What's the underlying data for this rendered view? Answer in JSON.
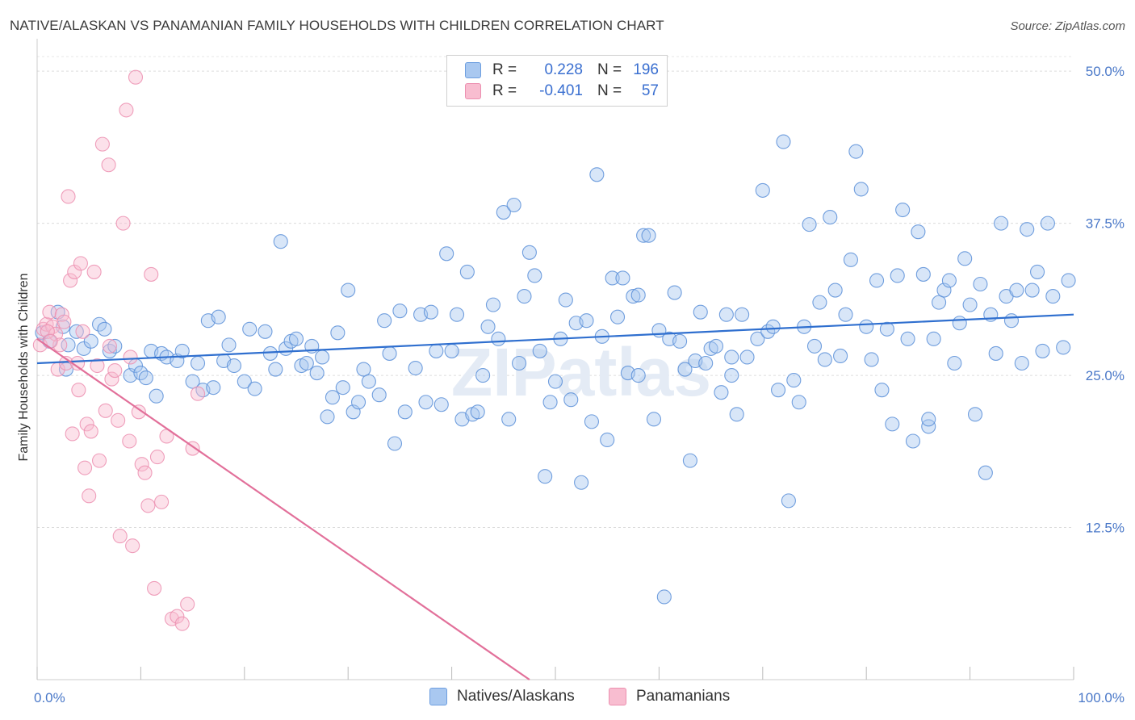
{
  "title": "NATIVE/ALASKAN VS PANAMANIAN FAMILY HOUSEHOLDS WITH CHILDREN CORRELATION CHART",
  "source": "Source: ZipAtlas.com",
  "watermark": "ZIPatlas",
  "legend_top": [
    {
      "r_label": "R =",
      "r_value": "0.228",
      "n_label": "N =",
      "n_value": "196",
      "color": "#a9c8f0",
      "border": "#6e9fe0"
    },
    {
      "r_label": "R =",
      "r_value": "-0.401",
      "n_label": "N =",
      "n_value": "57",
      "color": "#f8bdd0",
      "border": "#ec8fb0"
    }
  ],
  "legend_bottom": [
    {
      "label": "Natives/Alaskans",
      "color": "#a9c8f0",
      "border": "#6e9fe0"
    },
    {
      "label": "Panamanians",
      "color": "#f8bdd0",
      "border": "#ec8fb0"
    }
  ],
  "chart_data": {
    "type": "scatter",
    "ylabel": "Family Households with Children",
    "xlim": [
      0,
      100
    ],
    "ylim": [
      0,
      52
    ],
    "x_tick_labels": [
      "0.0%",
      "100.0%"
    ],
    "y_ticks": [
      12.5,
      25.0,
      37.5,
      50.0
    ],
    "y_tick_labels": [
      "12.5%",
      "25.0%",
      "37.5%",
      "50.0%"
    ],
    "grid": true,
    "series": [
      {
        "name": "Natives/Alaskans",
        "color": "#5b8fd8",
        "fill": "#a9c8f0",
        "trend": {
          "x": [
            0,
            100
          ],
          "y": [
            26.0,
            30.0
          ],
          "color": "#2f6fcf"
        },
        "points": [
          [
            0.5,
            28.5
          ],
          [
            1.2,
            27.8
          ],
          [
            2.0,
            30.2
          ],
          [
            2.5,
            29.0
          ],
          [
            3.0,
            27.5
          ],
          [
            3.8,
            28.6
          ],
          [
            4.5,
            27.2
          ],
          [
            5.2,
            27.8
          ],
          [
            6.0,
            29.2
          ],
          [
            6.5,
            28.8
          ],
          [
            7.0,
            27.0
          ],
          [
            7.5,
            27.4
          ],
          [
            9.0,
            25.0
          ],
          [
            9.5,
            25.8
          ],
          [
            10.0,
            25.2
          ],
          [
            10.5,
            24.8
          ],
          [
            11.0,
            27.0
          ],
          [
            11.5,
            23.3
          ],
          [
            12.0,
            26.8
          ],
          [
            12.5,
            26.5
          ],
          [
            13.5,
            26.2
          ],
          [
            14.0,
            27.0
          ],
          [
            15.0,
            24.5
          ],
          [
            15.5,
            26.0
          ],
          [
            16.0,
            23.8
          ],
          [
            16.5,
            29.5
          ],
          [
            17.0,
            24.0
          ],
          [
            17.5,
            29.8
          ],
          [
            18.0,
            26.2
          ],
          [
            18.5,
            27.5
          ],
          [
            19.0,
            25.8
          ],
          [
            20.0,
            24.5
          ],
          [
            20.5,
            28.8
          ],
          [
            21.0,
            23.9
          ],
          [
            22.0,
            28.6
          ],
          [
            22.5,
            26.8
          ],
          [
            23.0,
            25.5
          ],
          [
            23.5,
            36.0
          ],
          [
            24.0,
            27.2
          ],
          [
            24.5,
            27.8
          ],
          [
            25.0,
            28.0
          ],
          [
            25.5,
            25.8
          ],
          [
            26.5,
            27.4
          ],
          [
            27.0,
            25.2
          ],
          [
            27.5,
            26.5
          ],
          [
            28.0,
            21.6
          ],
          [
            28.5,
            23.2
          ],
          [
            29.0,
            28.5
          ],
          [
            29.5,
            24.0
          ],
          [
            30.0,
            32.0
          ],
          [
            30.5,
            22.0
          ],
          [
            31.0,
            22.8
          ],
          [
            31.5,
            25.5
          ],
          [
            32.0,
            24.5
          ],
          [
            33.0,
            23.4
          ],
          [
            33.5,
            29.5
          ],
          [
            34.0,
            26.8
          ],
          [
            34.5,
            19.4
          ],
          [
            35.0,
            30.3
          ],
          [
            35.5,
            22.0
          ],
          [
            36.5,
            25.6
          ],
          [
            37.0,
            30.0
          ],
          [
            37.5,
            22.8
          ],
          [
            38.0,
            30.2
          ],
          [
            38.5,
            27.0
          ],
          [
            39.0,
            22.6
          ],
          [
            39.5,
            35.0
          ],
          [
            40.0,
            27.0
          ],
          [
            40.5,
            30.0
          ],
          [
            41.0,
            21.4
          ],
          [
            41.5,
            33.5
          ],
          [
            42.0,
            21.8
          ],
          [
            42.5,
            22.0
          ],
          [
            43.0,
            25.0
          ],
          [
            43.5,
            29.0
          ],
          [
            44.0,
            30.8
          ],
          [
            45.0,
            38.4
          ],
          [
            45.5,
            21.4
          ],
          [
            46.0,
            39.0
          ],
          [
            46.5,
            26.0
          ],
          [
            47.0,
            31.5
          ],
          [
            47.5,
            35.1
          ],
          [
            48.0,
            33.2
          ],
          [
            48.5,
            27.0
          ],
          [
            49.0,
            16.7
          ],
          [
            49.5,
            22.8
          ],
          [
            50.0,
            24.5
          ],
          [
            50.5,
            28.0
          ],
          [
            51.0,
            31.2
          ],
          [
            51.5,
            23.0
          ],
          [
            52.0,
            29.3
          ],
          [
            52.5,
            16.2
          ],
          [
            53.0,
            29.5
          ],
          [
            53.5,
            21.2
          ],
          [
            54.0,
            41.5
          ],
          [
            54.5,
            28.2
          ],
          [
            55.0,
            19.7
          ],
          [
            55.5,
            33.0
          ],
          [
            56.0,
            29.8
          ],
          [
            56.5,
            33.0
          ],
          [
            57.0,
            25.2
          ],
          [
            57.5,
            31.5
          ],
          [
            58.0,
            31.6
          ],
          [
            58.5,
            36.5
          ],
          [
            59.0,
            36.5
          ],
          [
            59.5,
            21.4
          ],
          [
            60.0,
            28.7
          ],
          [
            60.5,
            6.8
          ],
          [
            61.0,
            28.0
          ],
          [
            61.5,
            31.8
          ],
          [
            62.0,
            27.8
          ],
          [
            62.5,
            25.5
          ],
          [
            63.0,
            18.0
          ],
          [
            63.5,
            26.2
          ],
          [
            64.0,
            30.2
          ],
          [
            64.5,
            26.0
          ],
          [
            65.0,
            27.2
          ],
          [
            65.5,
            27.4
          ],
          [
            66.0,
            23.6
          ],
          [
            66.5,
            30.0
          ],
          [
            67.0,
            26.5
          ],
          [
            67.5,
            21.8
          ],
          [
            68.0,
            30.0
          ],
          [
            68.5,
            26.5
          ],
          [
            69.5,
            28.0
          ],
          [
            70.0,
            40.2
          ],
          [
            70.5,
            28.6
          ],
          [
            71.0,
            29.0
          ],
          [
            71.5,
            23.8
          ],
          [
            72.0,
            44.2
          ],
          [
            72.5,
            14.7
          ],
          [
            73.0,
            24.6
          ],
          [
            73.5,
            22.8
          ],
          [
            74.0,
            29.0
          ],
          [
            74.5,
            37.4
          ],
          [
            75.0,
            27.4
          ],
          [
            75.5,
            31.0
          ],
          [
            76.0,
            26.3
          ],
          [
            76.5,
            38.0
          ],
          [
            77.0,
            32.0
          ],
          [
            77.5,
            26.6
          ],
          [
            78.0,
            30.0
          ],
          [
            78.5,
            34.5
          ],
          [
            79.0,
            43.4
          ],
          [
            79.5,
            40.3
          ],
          [
            80.0,
            29.0
          ],
          [
            80.5,
            26.3
          ],
          [
            81.0,
            32.8
          ],
          [
            81.5,
            23.8
          ],
          [
            82.0,
            28.8
          ],
          [
            82.5,
            21.0
          ],
          [
            83.0,
            33.2
          ],
          [
            83.5,
            38.6
          ],
          [
            84.0,
            28.0
          ],
          [
            84.5,
            19.6
          ],
          [
            85.0,
            36.8
          ],
          [
            85.5,
            33.3
          ],
          [
            86.0,
            20.8
          ],
          [
            86.5,
            28.0
          ],
          [
            87.0,
            31.0
          ],
          [
            87.5,
            32.0
          ],
          [
            88.0,
            32.8
          ],
          [
            88.5,
            26.0
          ],
          [
            89.0,
            29.3
          ],
          [
            89.5,
            34.6
          ],
          [
            90.0,
            30.8
          ],
          [
            90.5,
            21.8
          ],
          [
            91.0,
            32.5
          ],
          [
            91.5,
            17.0
          ],
          [
            92.0,
            30.0
          ],
          [
            92.5,
            26.8
          ],
          [
            93.0,
            37.5
          ],
          [
            93.5,
            31.5
          ],
          [
            94.0,
            29.5
          ],
          [
            94.5,
            32.0
          ],
          [
            95.0,
            26.0
          ],
          [
            95.5,
            37.0
          ],
          [
            96.0,
            32.0
          ],
          [
            96.5,
            33.5
          ],
          [
            97.0,
            27.0
          ],
          [
            97.5,
            37.5
          ],
          [
            98.0,
            31.5
          ],
          [
            99.0,
            27.3
          ],
          [
            99.5,
            32.8
          ],
          [
            2.8,
            25.5
          ],
          [
            26.0,
            26.0
          ],
          [
            44.5,
            28.0
          ],
          [
            58.0,
            25.0
          ],
          [
            86.0,
            21.4
          ],
          [
            67.0,
            25.0
          ]
        ]
      },
      {
        "name": "Panamanians",
        "color": "#ec8fb0",
        "fill": "#f8bdd0",
        "trend": {
          "x": [
            0,
            47.5
          ],
          "y": [
            28.0,
            0
          ],
          "color": "#e2709a"
        },
        "points": [
          [
            0.3,
            27.5
          ],
          [
            0.6,
            28.8
          ],
          [
            0.9,
            29.2
          ],
          [
            1.2,
            30.2
          ],
          [
            1.5,
            29.0
          ],
          [
            1.8,
            28.4
          ],
          [
            2.0,
            25.5
          ],
          [
            2.2,
            27.5
          ],
          [
            2.4,
            30.0
          ],
          [
            2.6,
            29.4
          ],
          [
            2.8,
            26.0
          ],
          [
            3.0,
            39.7
          ],
          [
            3.2,
            32.8
          ],
          [
            3.4,
            20.2
          ],
          [
            3.6,
            33.5
          ],
          [
            3.9,
            26.0
          ],
          [
            4.2,
            34.2
          ],
          [
            4.4,
            28.6
          ],
          [
            4.6,
            17.4
          ],
          [
            4.8,
            21.0
          ],
          [
            5.0,
            15.1
          ],
          [
            5.2,
            20.4
          ],
          [
            5.5,
            33.5
          ],
          [
            5.8,
            25.8
          ],
          [
            6.0,
            18.0
          ],
          [
            6.3,
            44.0
          ],
          [
            6.6,
            22.1
          ],
          [
            6.9,
            42.3
          ],
          [
            7.2,
            24.7
          ],
          [
            7.5,
            25.4
          ],
          [
            7.8,
            21.3
          ],
          [
            8.0,
            11.8
          ],
          [
            8.3,
            37.5
          ],
          [
            8.6,
            46.8
          ],
          [
            8.9,
            19.6
          ],
          [
            9.2,
            11.0
          ],
          [
            9.5,
            49.5
          ],
          [
            9.8,
            22.0
          ],
          [
            10.1,
            17.7
          ],
          [
            10.4,
            17.0
          ],
          [
            10.7,
            14.3
          ],
          [
            11.0,
            33.3
          ],
          [
            11.3,
            7.5
          ],
          [
            11.6,
            18.3
          ],
          [
            12.0,
            14.6
          ],
          [
            12.5,
            20.0
          ],
          [
            13.0,
            5.0
          ],
          [
            13.5,
            5.2
          ],
          [
            14.0,
            4.6
          ],
          [
            14.5,
            6.2
          ],
          [
            15.0,
            19.0
          ],
          [
            15.5,
            23.5
          ],
          [
            1.0,
            28.6
          ],
          [
            1.3,
            27.8
          ],
          [
            4.0,
            23.8
          ],
          [
            7.0,
            27.4
          ],
          [
            9.0,
            26.5
          ]
        ]
      }
    ]
  }
}
